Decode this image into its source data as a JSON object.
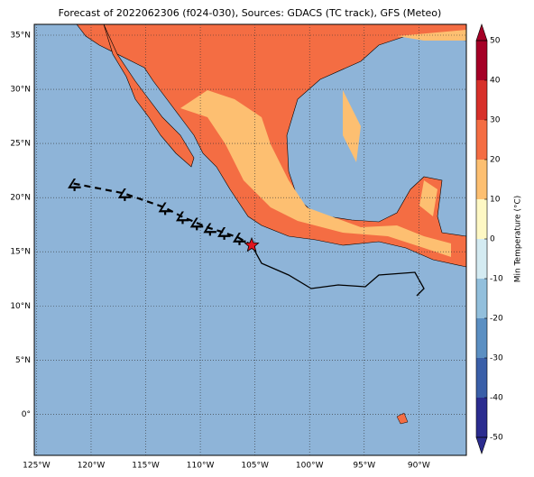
{
  "chart_data": {
    "type": "map",
    "title": "Forecast of 2022062306 (f024-030), Sources: GDACS (TC track), GFS (Meteo)",
    "xlim": [
      -125.2,
      -85.65
    ],
    "ylim": [
      -3.8,
      36
    ],
    "xticks": [
      {
        "value": -125,
        "label": "125°W"
      },
      {
        "value": -120,
        "label": "120°W"
      },
      {
        "value": -115,
        "label": "115°W"
      },
      {
        "value": -110,
        "label": "110°W"
      },
      {
        "value": -105,
        "label": "105°W"
      },
      {
        "value": -100,
        "label": "100°W"
      },
      {
        "value": -95,
        "label": "95°W"
      },
      {
        "value": -90,
        "label": "90°W"
      }
    ],
    "yticks": [
      {
        "value": 0,
        "label": "0°"
      },
      {
        "value": 5,
        "label": "5°N"
      },
      {
        "value": 10,
        "label": "10°N"
      },
      {
        "value": 15,
        "label": "15°N"
      },
      {
        "value": 20,
        "label": "20°N"
      },
      {
        "value": 25,
        "label": "25°N"
      },
      {
        "value": 30,
        "label": "30°N"
      },
      {
        "value": 35,
        "label": "35°N"
      }
    ],
    "grid": true,
    "track": {
      "lon": [
        -121.6,
        -117.0,
        -113.3,
        -111.7,
        -110.4,
        -109.2,
        -107.9,
        -106.5
      ],
      "lat": [
        21.3,
        20.4,
        19.1,
        18.25,
        17.7,
        17.2,
        16.8,
        16.3
      ],
      "colors": [
        "#000000",
        "#000000",
        "#e0141e",
        "#e0141e",
        "#e0141e",
        "#000000",
        "#000000",
        "#000000"
      ]
    },
    "current_position": {
      "lon": -105.3,
      "lat": 15.6,
      "color": "#e0141e"
    },
    "colorbar": {
      "label": "Min Temperature (°C)",
      "lim": [
        -50,
        50
      ],
      "ticks": [
        -50,
        -40,
        -30,
        -20,
        -10,
        0,
        10,
        20,
        30,
        40,
        50
      ],
      "colors": [
        "#2b2c8f",
        "#3a5fa8",
        "#5b8fc2",
        "#92bfdc",
        "#d4ebf2",
        "#fef8c4",
        "#fdbf71",
        "#f46d43",
        "#d7302a",
        "#a50026"
      ]
    }
  }
}
